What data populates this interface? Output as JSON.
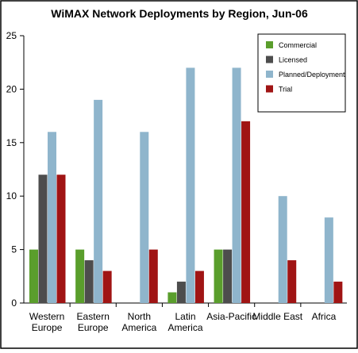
{
  "chart_data": {
    "type": "bar",
    "title": "WiMAX Network Deployments by Region, Jun-06",
    "xlabel": "",
    "ylabel": "",
    "ylim": [
      0,
      25
    ],
    "yticks": [
      0,
      5,
      10,
      15,
      20,
      25
    ],
    "categories": [
      [
        "Western",
        "Europe"
      ],
      [
        "Eastern",
        "Europe"
      ],
      [
        "North",
        "America"
      ],
      [
        "Latin",
        "America"
      ],
      [
        "Asia-Pacific"
      ],
      [
        "Middle East"
      ],
      [
        "Africa"
      ]
    ],
    "series": [
      {
        "name": "Commercial",
        "color": "#5a9e2c",
        "values": [
          5,
          5,
          0,
          1,
          5,
          0,
          0
        ]
      },
      {
        "name": "Licensed",
        "color": "#4d4d4d",
        "values": [
          12,
          4,
          0,
          2,
          5,
          0,
          0
        ]
      },
      {
        "name": "Planned/Deployment",
        "color": "#8fb5cc",
        "values": [
          16,
          19,
          16,
          22,
          22,
          10,
          8
        ]
      },
      {
        "name": "Trial",
        "color": "#a01414",
        "values": [
          12,
          3,
          5,
          3,
          17,
          4,
          2
        ]
      }
    ],
    "grid": false,
    "legend_position": "top-right"
  }
}
